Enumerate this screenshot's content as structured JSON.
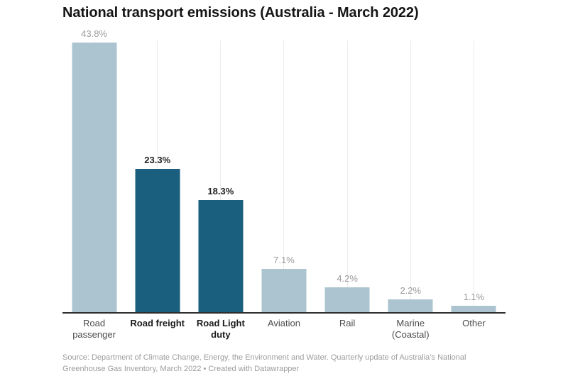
{
  "header": {
    "title": "National transport emissions (Australia - March 2022)"
  },
  "chart_data": {
    "type": "bar",
    "title": "National transport emissions (Australia - March 2022)",
    "categories": [
      "Road passenger",
      "Road freight",
      "Road Light duty",
      "Aviation",
      "Rail",
      "Marine (Coastal)",
      "Other"
    ],
    "values": [
      43.8,
      23.3,
      18.3,
      7.1,
      4.2,
      2.2,
      1.1
    ],
    "value_labels": [
      "43.8%",
      "23.3%",
      "18.3%",
      "7.1%",
      "4.2%",
      "2.2%",
      "1.1%"
    ],
    "highlighted": [
      false,
      true,
      true,
      false,
      false,
      false,
      false
    ],
    "unit": "%",
    "xlabel": "",
    "ylabel": "",
    "ylim": [
      0,
      44
    ],
    "grid": "one vertical gridline per category, behind bars",
    "legend_position": "none",
    "colors": {
      "bar_default": "#abc4cf",
      "bar_highlight": "#1a5f7d",
      "value_label_default": "#9b9b9b",
      "value_label_highlight": "#232323",
      "axis_line": "#2e2e2e",
      "gridline": "#ececec"
    }
  },
  "footer": {
    "source_line1": "Source: Department of Climate Change, Energy, the Environment and Water. Quarterly update of Australia’s National",
    "source_line2": "Greenhouse Gas Inventory, March 2022 • Created with Datawrapper"
  }
}
